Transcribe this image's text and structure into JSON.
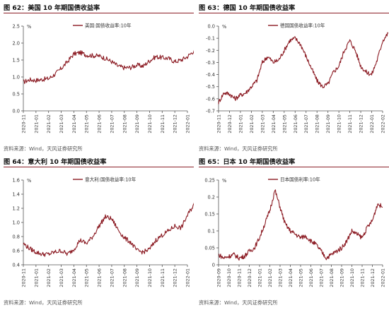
{
  "chart_data": [
    {
      "type": "line",
      "title": "图 62：美国 10 年期国债收益率",
      "unit": "%",
      "legend": "美国:国债收益率:10年",
      "source": "资料来源：Wind，天风证券研究所",
      "ylim": [
        0,
        2.5
      ],
      "yticks": [
        "0.0",
        "0.5",
        "1.0",
        "1.5",
        "2.0",
        "2.5"
      ],
      "xticks": [
        "2020-11",
        "2021-01",
        "2021-02",
        "2021-03",
        "2021-04",
        "2021-05",
        "2021-06",
        "2021-07",
        "2021-08",
        "2021-09",
        "2021-10",
        "2021-11",
        "2021-12",
        "2022-01"
      ],
      "x": [
        0,
        0.5,
        1,
        1.5,
        2,
        2.5,
        3,
        3.5,
        4,
        4.5,
        5,
        5.5,
        6,
        6.5,
        7,
        7.5,
        8,
        8.5,
        9,
        9.5,
        10,
        10.5,
        11,
        11.5,
        12,
        12.5,
        13,
        13.5,
        14
      ],
      "values": [
        0.85,
        0.92,
        0.9,
        0.93,
        0.95,
        1.08,
        1.25,
        1.45,
        1.68,
        1.72,
        1.65,
        1.63,
        1.62,
        1.55,
        1.45,
        1.32,
        1.27,
        1.28,
        1.35,
        1.32,
        1.48,
        1.6,
        1.57,
        1.55,
        1.45,
        1.5,
        1.6,
        1.77,
        1.75
      ]
    },
    {
      "type": "line",
      "title": "图 63：德国 10 年期国债收益率",
      "unit": "%",
      "legend": "德国国债收益率:10年",
      "source": "资料来源：Wind，天风证券研究所",
      "ylim": [
        -0.7,
        0
      ],
      "yticks": [
        "0.0",
        "-0.1",
        "-0.2",
        "-0.3",
        "-0.4",
        "-0.5",
        "-0.6",
        "-0.7"
      ],
      "xticks": [
        "2020-11",
        "2020-12",
        "2021-01",
        "2021-02",
        "2021-03",
        "2021-04",
        "2021-05",
        "2021-06",
        "2021-07",
        "2021-08",
        "2021-09",
        "2021-10",
        "2021-11",
        "2021-12",
        "2022-01",
        "2022-02"
      ],
      "x": [
        0,
        0.5,
        1,
        1.5,
        2,
        2.5,
        3,
        3.5,
        4,
        4.5,
        5,
        5.5,
        6,
        6.5,
        7,
        7.5,
        8,
        8.5,
        9,
        9.5,
        10,
        10.5,
        11,
        11.5,
        12,
        12.5,
        13,
        13.5,
        14,
        14.5,
        15,
        15.5
      ],
      "values": [
        -0.63,
        -0.55,
        -0.56,
        -0.6,
        -0.57,
        -0.55,
        -0.5,
        -0.45,
        -0.3,
        -0.25,
        -0.3,
        -0.28,
        -0.2,
        -0.12,
        -0.1,
        -0.15,
        -0.25,
        -0.35,
        -0.45,
        -0.5,
        -0.48,
        -0.38,
        -0.33,
        -0.2,
        -0.12,
        -0.2,
        -0.33,
        -0.38,
        -0.4,
        -0.28,
        -0.12,
        -0.06
      ]
    },
    {
      "type": "line",
      "title": "图 64：意大利 10 年期国债收益率",
      "unit": "%",
      "legend": "意大利:国债收益率:10年",
      "source": "资料来源：Wind，天风证券研究所",
      "ylim": [
        0.4,
        1.6
      ],
      "yticks": [
        "0.4",
        "0.6",
        "0.8",
        "1.0",
        "1.2",
        "1.4",
        "1.6"
      ],
      "xticks": [
        "2020-11",
        "2021-01",
        "2021-02",
        "2021-03",
        "2021-04",
        "2021-05",
        "2021-06",
        "2021-07",
        "2021-08",
        "2021-09",
        "2021-10",
        "2021-11",
        "2021-12",
        "2022-01"
      ],
      "x": [
        0,
        0.5,
        1,
        1.5,
        2,
        2.5,
        3,
        3.5,
        4,
        4.5,
        5,
        5.5,
        6,
        6.5,
        7,
        7.5,
        8,
        8.5,
        9,
        9.5,
        10,
        10.5,
        11,
        11.5,
        12,
        12.5,
        13,
        13.5,
        14
      ],
      "values": [
        0.7,
        0.63,
        0.58,
        0.55,
        0.55,
        0.58,
        0.6,
        0.55,
        0.62,
        0.75,
        0.7,
        0.8,
        0.95,
        1.08,
        1.05,
        0.9,
        0.78,
        0.72,
        0.6,
        0.58,
        0.62,
        0.75,
        0.82,
        0.88,
        0.95,
        0.92,
        1.1,
        1.25,
        1.38
      ]
    },
    {
      "type": "line",
      "title": "图 65：日本 10 年期国债收益率",
      "unit": "%",
      "legend": "日本国债利率:10年",
      "source": "资料来源：Wind，天风证券研究所",
      "ylim": [
        0,
        0.25
      ],
      "yticks": [
        "0",
        "0.05",
        "0.1",
        "0.15",
        "0.2",
        "0.25"
      ],
      "xticks": [
        "2020-09",
        "2020-10",
        "2020-11",
        "2020-12",
        "2021-01",
        "2021-02",
        "2021-03",
        "2021-04",
        "2021-05",
        "2021-06",
        "2021-07",
        "2021-08",
        "2021-09",
        "2021-10",
        "2021-11",
        "2021-12",
        "2022-01"
      ],
      "x": [
        0,
        0.5,
        1,
        1.5,
        2,
        2.5,
        3,
        3.5,
        4,
        4.5,
        5,
        5.5,
        6,
        6.5,
        7,
        7.5,
        8,
        8.5,
        9,
        9.5,
        10,
        10.5,
        11,
        11.5,
        12,
        12.5,
        13,
        13.5,
        14,
        14.5,
        15,
        15.5,
        16
      ],
      "values": [
        0.03,
        0.02,
        0.025,
        0.03,
        0.02,
        0.025,
        0.04,
        0.05,
        0.08,
        0.12,
        0.16,
        0.22,
        0.17,
        0.12,
        0.1,
        0.09,
        0.08,
        0.085,
        0.07,
        0.06,
        0.04,
        0.02,
        0.03,
        0.04,
        0.05,
        0.07,
        0.1,
        0.09,
        0.08,
        0.11,
        0.13,
        0.18,
        0.17
      ]
    }
  ]
}
